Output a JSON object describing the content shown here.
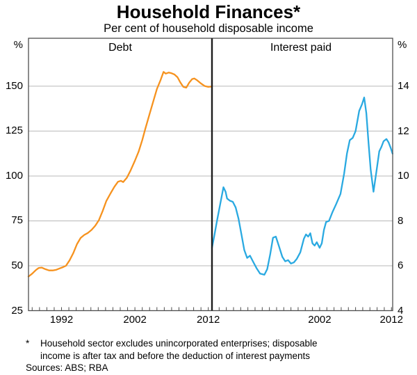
{
  "title": "Household Finances*",
  "subtitle": "Per cent of household disposable income",
  "footnote": {
    "marker": "*",
    "line1": "Household sector excludes unincorporated enterprises; disposable",
    "line2": "income is after tax and before the deduction of interest payments",
    "sources": "Sources: ABS; RBA"
  },
  "colors": {
    "debt_line": "#F6921E",
    "interest_line": "#29A9E1",
    "grid": "#b8b8b8",
    "frame": "#4d4d4d",
    "divider": "#1c1c1c"
  },
  "chart_data": {
    "type": "line",
    "title": "Household Finances*",
    "subtitle": "Per cent of household disposable income",
    "grid": "on",
    "legend_position": "none",
    "panels": [
      {
        "label": "Debt",
        "axis_side": "left",
        "axis_label": "%",
        "ylim": [
          25,
          176.7
        ],
        "yticks": [
          150,
          125,
          100,
          75,
          50,
          25
        ],
        "xlim": [
          1987.5,
          2012.5
        ],
        "xtick_years": [
          1992,
          2002,
          2012
        ],
        "series": {
          "name": "Debt",
          "color": "#F6921E",
          "points": [
            [
              1987.5,
              44.0
            ],
            [
              1988.0,
              45.6
            ],
            [
              1988.5,
              47.6
            ],
            [
              1988.9,
              48.8
            ],
            [
              1989.3,
              49.0
            ],
            [
              1989.8,
              48.1
            ],
            [
              1990.3,
              47.4
            ],
            [
              1990.8,
              47.4
            ],
            [
              1991.3,
              47.8
            ],
            [
              1991.8,
              48.6
            ],
            [
              1992.2,
              49.2
            ],
            [
              1992.6,
              50.0
            ],
            [
              1993.1,
              53.0
            ],
            [
              1993.6,
              57.0
            ],
            [
              1994.1,
              62.0
            ],
            [
              1994.6,
              65.5
            ],
            [
              1995.1,
              67.2
            ],
            [
              1995.6,
              68.3
            ],
            [
              1996.1,
              70.0
            ],
            [
              1996.6,
              72.3
            ],
            [
              1997.1,
              75.5
            ],
            [
              1997.6,
              80.5
            ],
            [
              1998.1,
              86.0
            ],
            [
              1998.7,
              90.5
            ],
            [
              1999.2,
              94.0
            ],
            [
              1999.7,
              96.8
            ],
            [
              2000.1,
              97.3
            ],
            [
              2000.4,
              96.6
            ],
            [
              2000.9,
              99.0
            ],
            [
              2001.4,
              103.0
            ],
            [
              2002.0,
              108.5
            ],
            [
              2002.5,
              113.5
            ],
            [
              2003.0,
              120.0
            ],
            [
              2003.4,
              126.0
            ],
            [
              2004.0,
              134.5
            ],
            [
              2004.5,
              141.5
            ],
            [
              2005.0,
              148.5
            ],
            [
              2005.5,
              153.5
            ],
            [
              2005.9,
              158.0
            ],
            [
              2006.2,
              157.0
            ],
            [
              2006.6,
              157.6
            ],
            [
              2007.0,
              157.2
            ],
            [
              2007.4,
              156.5
            ],
            [
              2007.8,
              155.0
            ],
            [
              2008.2,
              152.0
            ],
            [
              2008.6,
              149.6
            ],
            [
              2009.0,
              149.2
            ],
            [
              2009.4,
              152.0
            ],
            [
              2009.8,
              154.0
            ],
            [
              2010.1,
              154.3
            ],
            [
              2010.5,
              153.2
            ],
            [
              2011.0,
              151.5
            ],
            [
              2011.5,
              150.1
            ],
            [
              2012.0,
              149.6
            ],
            [
              2012.45,
              149.8
            ]
          ]
        }
      },
      {
        "label": "Interest paid",
        "axis_side": "right",
        "axis_label": "%",
        "ylim": [
          4,
          16.14
        ],
        "yticks": [
          14,
          12,
          10,
          8,
          6,
          4
        ],
        "xlim": [
          1987.0,
          2012.17
        ],
        "xtick_years": [
          2002,
          2012
        ],
        "series": {
          "name": "Interest paid",
          "color": "#29A9E1",
          "points": [
            [
              1987.0,
              6.8
            ],
            [
              1987.3,
              7.3
            ],
            [
              1987.7,
              8.0
            ],
            [
              1988.0,
              8.5
            ],
            [
              1988.3,
              9.0
            ],
            [
              1988.6,
              9.5
            ],
            [
              1988.9,
              9.3
            ],
            [
              1989.1,
              9.0
            ],
            [
              1989.5,
              8.9
            ],
            [
              1989.9,
              8.85
            ],
            [
              1990.3,
              8.6
            ],
            [
              1990.7,
              8.1
            ],
            [
              1991.1,
              7.4
            ],
            [
              1991.5,
              6.7
            ],
            [
              1991.9,
              6.35
            ],
            [
              1992.3,
              6.45
            ],
            [
              1992.7,
              6.2
            ],
            [
              1993.2,
              5.9
            ],
            [
              1993.7,
              5.65
            ],
            [
              1994.3,
              5.6
            ],
            [
              1994.7,
              5.85
            ],
            [
              1995.1,
              6.5
            ],
            [
              1995.5,
              7.25
            ],
            [
              1995.9,
              7.3
            ],
            [
              1996.3,
              6.9
            ],
            [
              1996.8,
              6.4
            ],
            [
              1997.2,
              6.2
            ],
            [
              1997.6,
              6.25
            ],
            [
              1998.0,
              6.1
            ],
            [
              1998.4,
              6.15
            ],
            [
              1998.8,
              6.3
            ],
            [
              1999.3,
              6.6
            ],
            [
              1999.8,
              7.2
            ],
            [
              2000.1,
              7.4
            ],
            [
              2000.4,
              7.3
            ],
            [
              2000.7,
              7.45
            ],
            [
              2001.0,
              7.0
            ],
            [
              2001.3,
              6.9
            ],
            [
              2001.6,
              7.05
            ],
            [
              2002.0,
              6.8
            ],
            [
              2002.3,
              7.0
            ],
            [
              2002.6,
              7.6
            ],
            [
              2002.9,
              7.95
            ],
            [
              2003.3,
              8.0
            ],
            [
              2003.8,
              8.4
            ],
            [
              2004.3,
              8.75
            ],
            [
              2004.9,
              9.2
            ],
            [
              2005.4,
              10.1
            ],
            [
              2005.8,
              11.0
            ],
            [
              2006.2,
              11.6
            ],
            [
              2006.6,
              11.7
            ],
            [
              2007.0,
              12.0
            ],
            [
              2007.5,
              12.9
            ],
            [
              2007.9,
              13.2
            ],
            [
              2008.2,
              13.5
            ],
            [
              2008.5,
              12.8
            ],
            [
              2008.8,
              11.5
            ],
            [
              2009.1,
              10.3
            ],
            [
              2009.5,
              9.3
            ],
            [
              2009.9,
              10.2
            ],
            [
              2010.3,
              11.1
            ],
            [
              2010.6,
              11.3
            ],
            [
              2010.9,
              11.55
            ],
            [
              2011.3,
              11.65
            ],
            [
              2011.6,
              11.5
            ],
            [
              2011.9,
              11.25
            ],
            [
              2012.15,
              11.0
            ]
          ]
        }
      }
    ]
  }
}
